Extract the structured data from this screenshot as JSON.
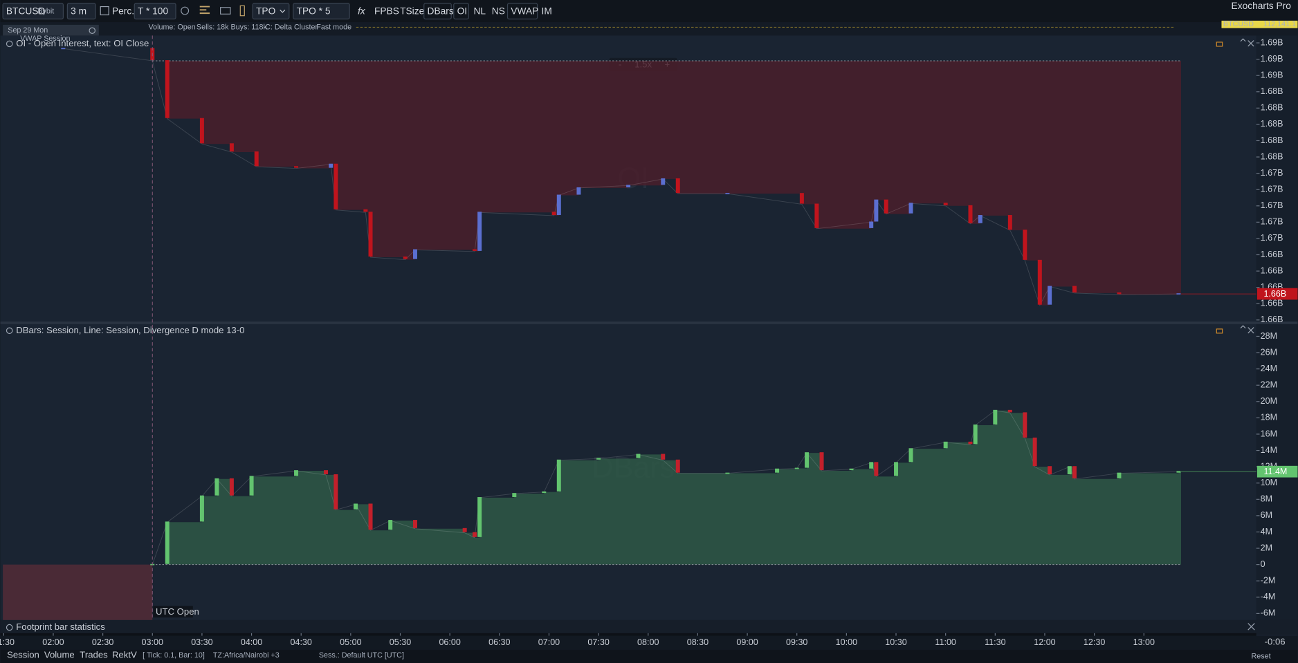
{
  "toolbar": {
    "symbol": "BTCUSD",
    "exchange": "Bybit",
    "timeframe": "3 m",
    "percent": "Perc.",
    "tick_mult": "T * 100",
    "tpo": "TPO",
    "tpo_mult": "TPO * 5",
    "fx": "fx",
    "buttons": [
      "FPBS",
      "TSize",
      "DBars",
      "OI",
      "NL",
      "NS",
      "VWAP",
      "IM"
    ],
    "brand": "Exocharts Pro"
  },
  "header": {
    "date": "Sep 29 Mon",
    "vwap": "VWAP Session",
    "volume": "Volume: Open",
    "flow": "Sells: 18k Buys: 118k",
    "cluster": "C: Delta Cluster",
    "mode": "Fast mode",
    "ticker": "BTCUSD",
    "price": "112,141.1"
  },
  "zoom": {
    "minus": "-",
    "level": "1.5x",
    "plus": "+"
  },
  "time_axis": {
    "xlim": [
      "01:28",
      "14:08"
    ],
    "xticks": [
      "01:30",
      "02:00",
      "02:30",
      "03:00",
      "03:30",
      "04:00",
      "04:30",
      "05:00",
      "05:30",
      "06:00",
      "06:30",
      "07:00",
      "07:30",
      "08:00",
      "08:30",
      "09:00",
      "09:30",
      "10:00",
      "10:30",
      "11:00",
      "11:30",
      "12:00",
      "12:30",
      "13:00"
    ]
  },
  "markers": [
    {
      "label": "UTC Open",
      "x": "03:00"
    }
  ],
  "chart_data": [
    {
      "type": "candle-area",
      "title": "OI - Open Interest, text: OI Close",
      "watermark": "OI",
      "up_color": "#5b6fd0",
      "down_color": "#c0141d",
      "area_color": "#4a1f2b",
      "x": [
        "02:06",
        "03:00",
        "03:09",
        "03:30",
        "03:48",
        "04:03",
        "04:27",
        "04:48",
        "04:51",
        "05:09",
        "05:12",
        "05:33",
        "05:39",
        "06:15",
        "06:18",
        "07:03",
        "07:06",
        "07:18",
        "07:48",
        "08:09",
        "08:18",
        "08:48",
        "09:33",
        "09:42",
        "10:15",
        "10:18",
        "10:24",
        "10:39",
        "11:00",
        "11:15",
        "11:21",
        "11:39",
        "11:48",
        "11:57",
        "12:03",
        "12:18",
        "12:45",
        "13:21"
      ],
      "values": [
        1.6887,
        1.6872,
        1.6801,
        1.677,
        1.676,
        1.6742,
        1.674,
        1.6745,
        1.6689,
        1.6686,
        1.6631,
        1.6628,
        1.664,
        1.6638,
        1.6686,
        1.6682,
        1.6707,
        1.6716,
        1.6719,
        1.6727,
        1.6709,
        1.6709,
        1.6696,
        1.6666,
        1.6674,
        1.6701,
        1.6684,
        1.6697,
        1.6694,
        1.6672,
        1.6682,
        1.6664,
        1.6627,
        1.6572,
        1.6595,
        1.6587,
        1.6585,
        1.6586
      ],
      "last_label": "1.66B",
      "ylim": [
        1.6551,
        1.6903
      ],
      "yticks": [
        {
          "value": 1.6894,
          "label": "1.69B"
        },
        {
          "value": 1.6874,
          "label": "1.69B"
        },
        {
          "value": 1.6854,
          "label": "1.69B"
        },
        {
          "value": 1.6834,
          "label": "1.68B"
        },
        {
          "value": 1.6814,
          "label": "1.68B"
        },
        {
          "value": 1.6794,
          "label": "1.68B"
        },
        {
          "value": 1.6774,
          "label": "1.68B"
        },
        {
          "value": 1.6754,
          "label": "1.68B"
        },
        {
          "value": 1.6734,
          "label": "1.67B"
        },
        {
          "value": 1.6714,
          "label": "1.67B"
        },
        {
          "value": 1.6694,
          "label": "1.67B"
        },
        {
          "value": 1.6674,
          "label": "1.67B"
        },
        {
          "value": 1.6654,
          "label": "1.67B"
        },
        {
          "value": 1.6634,
          "label": "1.66B"
        },
        {
          "value": 1.6614,
          "label": "1.66B"
        },
        {
          "value": 1.6594,
          "label": "1.66B"
        },
        {
          "value": 1.6574,
          "label": "1.66B"
        },
        {
          "value": 1.6554,
          "label": "1.66B"
        }
      ]
    },
    {
      "type": "candle-area",
      "title": "DBars: Session, Line: Session, Divergence D mode 13-0",
      "watermark": "DBars",
      "up_color": "#63c46f",
      "down_color": "#c3202b",
      "area_color": "#2f5846",
      "x": [
        "03:00",
        "03:09",
        "03:30",
        "03:39",
        "03:48",
        "04:00",
        "04:27",
        "04:45",
        "04:51",
        "05:03",
        "05:12",
        "05:24",
        "05:39",
        "06:09",
        "06:15",
        "06:18",
        "06:39",
        "06:57",
        "07:06",
        "07:30",
        "07:54",
        "08:09",
        "08:18",
        "08:48",
        "09:18",
        "09:30",
        "09:36",
        "09:45",
        "10:03",
        "10:15",
        "10:18",
        "10:30",
        "10:39",
        "11:00",
        "11:15",
        "11:18",
        "11:30",
        "11:39",
        "11:48",
        "11:54",
        "12:03",
        "12:15",
        "12:18",
        "12:45",
        "13:21"
      ],
      "values": [
        0,
        5.2,
        8.4,
        10.5,
        8.4,
        10.8,
        11.5,
        11.0,
        6.7,
        7.4,
        4.2,
        5.4,
        4.4,
        3.9,
        3.3,
        8.2,
        8.7,
        8.9,
        12.8,
        13.0,
        13.5,
        12.8,
        11.2,
        11.2,
        11.7,
        11.8,
        13.7,
        11.5,
        11.7,
        12.5,
        10.8,
        12.5,
        14.2,
        15.0,
        14.7,
        17.1,
        18.9,
        18.6,
        15.5,
        12.0,
        11.0,
        12.0,
        10.5,
        11.2,
        11.4
      ],
      "last_label": "11.4M",
      "ylim": [
        -6.8,
        29.4
      ],
      "yticks": [
        {
          "value": 28,
          "label": "28M"
        },
        {
          "value": 26,
          "label": "26M"
        },
        {
          "value": 24,
          "label": "24M"
        },
        {
          "value": 22,
          "label": "22M"
        },
        {
          "value": 20,
          "label": "20M"
        },
        {
          "value": 18,
          "label": "18M"
        },
        {
          "value": 16,
          "label": "16M"
        },
        {
          "value": 14,
          "label": "14M"
        },
        {
          "value": 12,
          "label": "12M"
        },
        {
          "value": 10,
          "label": "10M"
        },
        {
          "value": 8,
          "label": "8M"
        },
        {
          "value": 6,
          "label": "6M"
        },
        {
          "value": 4,
          "label": "4M"
        },
        {
          "value": 2,
          "label": "2M"
        },
        0,
        {
          "value": -2,
          "label": "-2M"
        },
        {
          "value": -4,
          "label": "-4M"
        },
        {
          "value": -6,
          "label": "-6M"
        }
      ]
    }
  ],
  "footprint": {
    "title": "Footprint bar statistics"
  },
  "footer": {
    "tabs": [
      "Session",
      "Volume",
      "Trades",
      "RektV"
    ],
    "tick": "[ Tick: 0.1, Bar: 10]",
    "tz": "TZ:Africa/Nairobi +3",
    "session": "Sess.: Default UTC [UTC]",
    "countdown": "-0:06",
    "reset": "Reset"
  }
}
